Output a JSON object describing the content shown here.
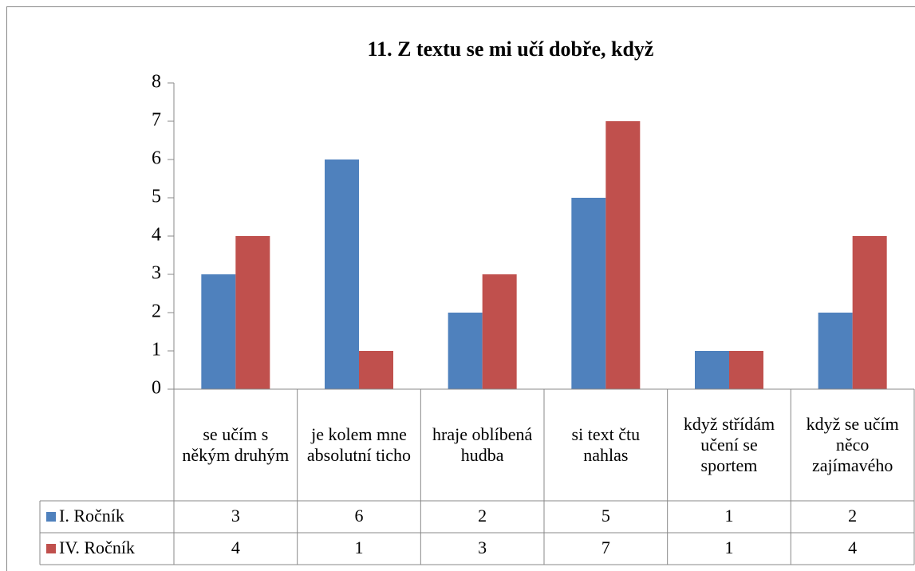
{
  "chart_data": {
    "type": "bar",
    "title": "11. Z textu se mi učí dobře, když",
    "categories": [
      "se učím s někým druhým",
      "je kolem mne absolutní ticho",
      "hraje oblíbená hudba",
      "si text čtu nahlas",
      "když střídám učení se sportem",
      "když se učím něco zajímavého"
    ],
    "series": [
      {
        "name": "I. Ročník",
        "color": "#4f81bd",
        "values": [
          3,
          6,
          2,
          5,
          1,
          2
        ]
      },
      {
        "name": "IV. Ročník",
        "color": "#c0504d",
        "values": [
          4,
          1,
          3,
          7,
          1,
          4
        ]
      }
    ],
    "ylim": [
      0,
      8
    ],
    "yticks": [
      0,
      1,
      2,
      3,
      4,
      5,
      6,
      7,
      8
    ],
    "grid": false,
    "data_table": true
  }
}
